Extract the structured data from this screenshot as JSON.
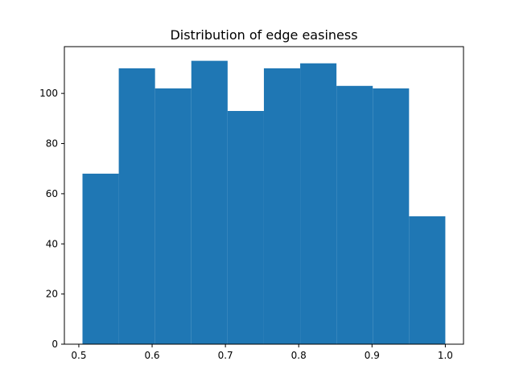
{
  "chart_data": {
    "type": "histogram",
    "title": "Distribution of edge easiness",
    "xlabel": "",
    "ylabel": "",
    "bins": [
      {
        "x0": 0.505,
        "x1": 0.5545,
        "count": 68
      },
      {
        "x0": 0.5545,
        "x1": 0.604,
        "count": 110
      },
      {
        "x0": 0.604,
        "x1": 0.6535,
        "count": 102
      },
      {
        "x0": 0.6535,
        "x1": 0.703,
        "count": 113
      },
      {
        "x0": 0.703,
        "x1": 0.7525,
        "count": 93
      },
      {
        "x0": 0.7525,
        "x1": 0.802,
        "count": 110
      },
      {
        "x0": 0.802,
        "x1": 0.8515,
        "count": 112
      },
      {
        "x0": 0.8515,
        "x1": 0.901,
        "count": 103
      },
      {
        "x0": 0.901,
        "x1": 0.9505,
        "count": 102
      },
      {
        "x0": 0.9505,
        "x1": 1.0,
        "count": 51
      }
    ],
    "xlim": [
      0.4803,
      1.0248
    ],
    "ylim": [
      0,
      118.65
    ],
    "xticks": [
      "0.5",
      "0.6",
      "0.7",
      "0.8",
      "0.9",
      "1.0"
    ],
    "yticks": [
      "0",
      "20",
      "40",
      "60",
      "80",
      "100"
    ],
    "grid": false,
    "bar_color": "#1f77b4"
  }
}
